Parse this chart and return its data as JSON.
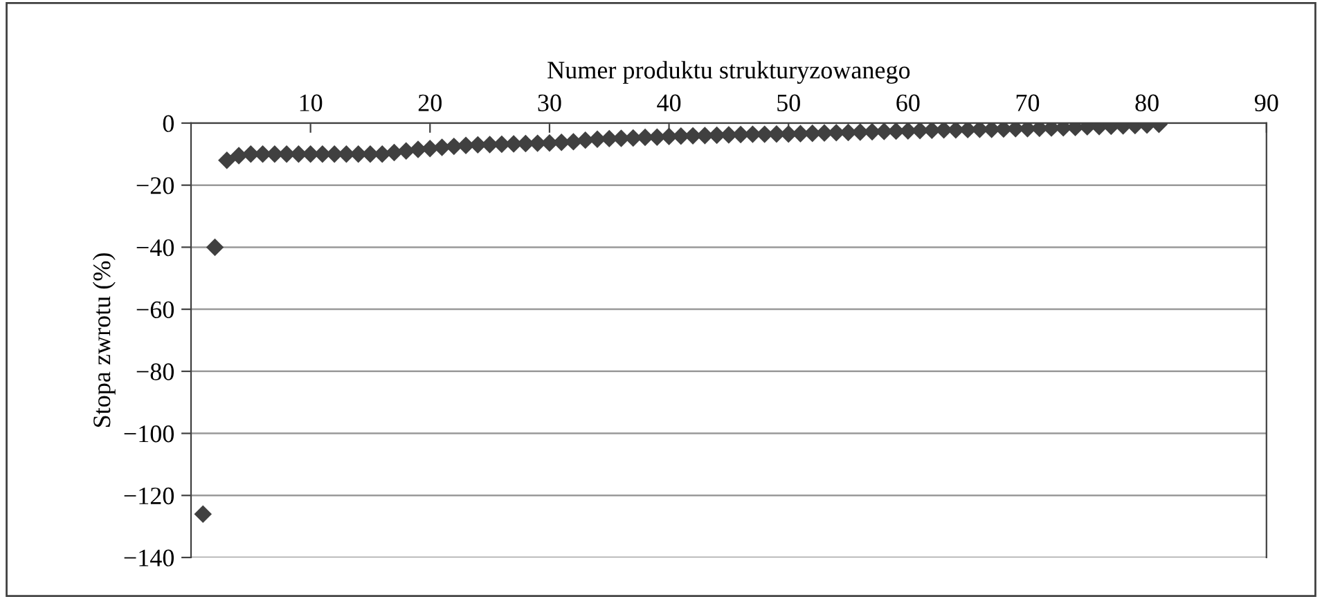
{
  "chart_data": {
    "type": "scatter",
    "xlabel": "Numer produktu strukturyzowanego",
    "ylabel": "Stopa zwrotu (%)",
    "x": [
      1,
      2,
      3,
      4,
      5,
      6,
      7,
      8,
      9,
      10,
      11,
      12,
      13,
      14,
      15,
      16,
      17,
      18,
      19,
      20,
      21,
      22,
      23,
      24,
      25,
      26,
      27,
      28,
      29,
      30,
      31,
      32,
      33,
      34,
      35,
      36,
      37,
      38,
      39,
      40,
      41,
      42,
      43,
      44,
      45,
      46,
      47,
      48,
      49,
      50,
      51,
      52,
      53,
      54,
      55,
      56,
      57,
      58,
      59,
      60,
      61,
      62,
      63,
      64,
      65,
      66,
      67,
      68,
      69,
      70,
      71,
      72,
      73,
      74,
      75,
      76,
      77,
      78,
      79,
      80,
      81
    ],
    "series": [
      {
        "color": "#404040",
        "values": [
          -126,
          -40,
          -12,
          -10.5,
          -10,
          -10,
          -10,
          -10,
          -10,
          -10,
          -10,
          -10,
          -10,
          -10,
          -10,
          -10,
          -9.5,
          -9,
          -8.5,
          -8.2,
          -7.8,
          -7.5,
          -7.2,
          -7,
          -6.9,
          -6.8,
          -6.7,
          -6.6,
          -6.5,
          -6.4,
          -6.2,
          -6,
          -5.5,
          -5.2,
          -5,
          -4.9,
          -4.8,
          -4.6,
          -4.5,
          -4.3,
          -4.2,
          -4.1,
          -4,
          -3.9,
          -3.8,
          -3.7,
          -3.6,
          -3.6,
          -3.5,
          -3.5,
          -3.4,
          -3.3,
          -3.2,
          -3.1,
          -3,
          -2.9,
          -2.8,
          -2.7,
          -2.6,
          -2.5,
          -2.4,
          -2.3,
          -2.2,
          -2.2,
          -2.1,
          -2,
          -2,
          -1.9,
          -1.8,
          -1.8,
          -1.7,
          -1.6,
          -1.5,
          -1.4,
          -1.2,
          -1.1,
          -1,
          -0.9,
          -0.8,
          -0.6,
          -0.4
        ]
      }
    ],
    "xlim": [
      0,
      90
    ],
    "xticks": [
      10,
      20,
      30,
      40,
      50,
      60,
      70,
      80,
      90
    ],
    "ylim": [
      -140,
      0
    ],
    "yticks": [
      -140,
      -120,
      -100,
      -80,
      -60,
      -40,
      -20,
      0
    ],
    "grid": "y",
    "marker": "diamond"
  }
}
